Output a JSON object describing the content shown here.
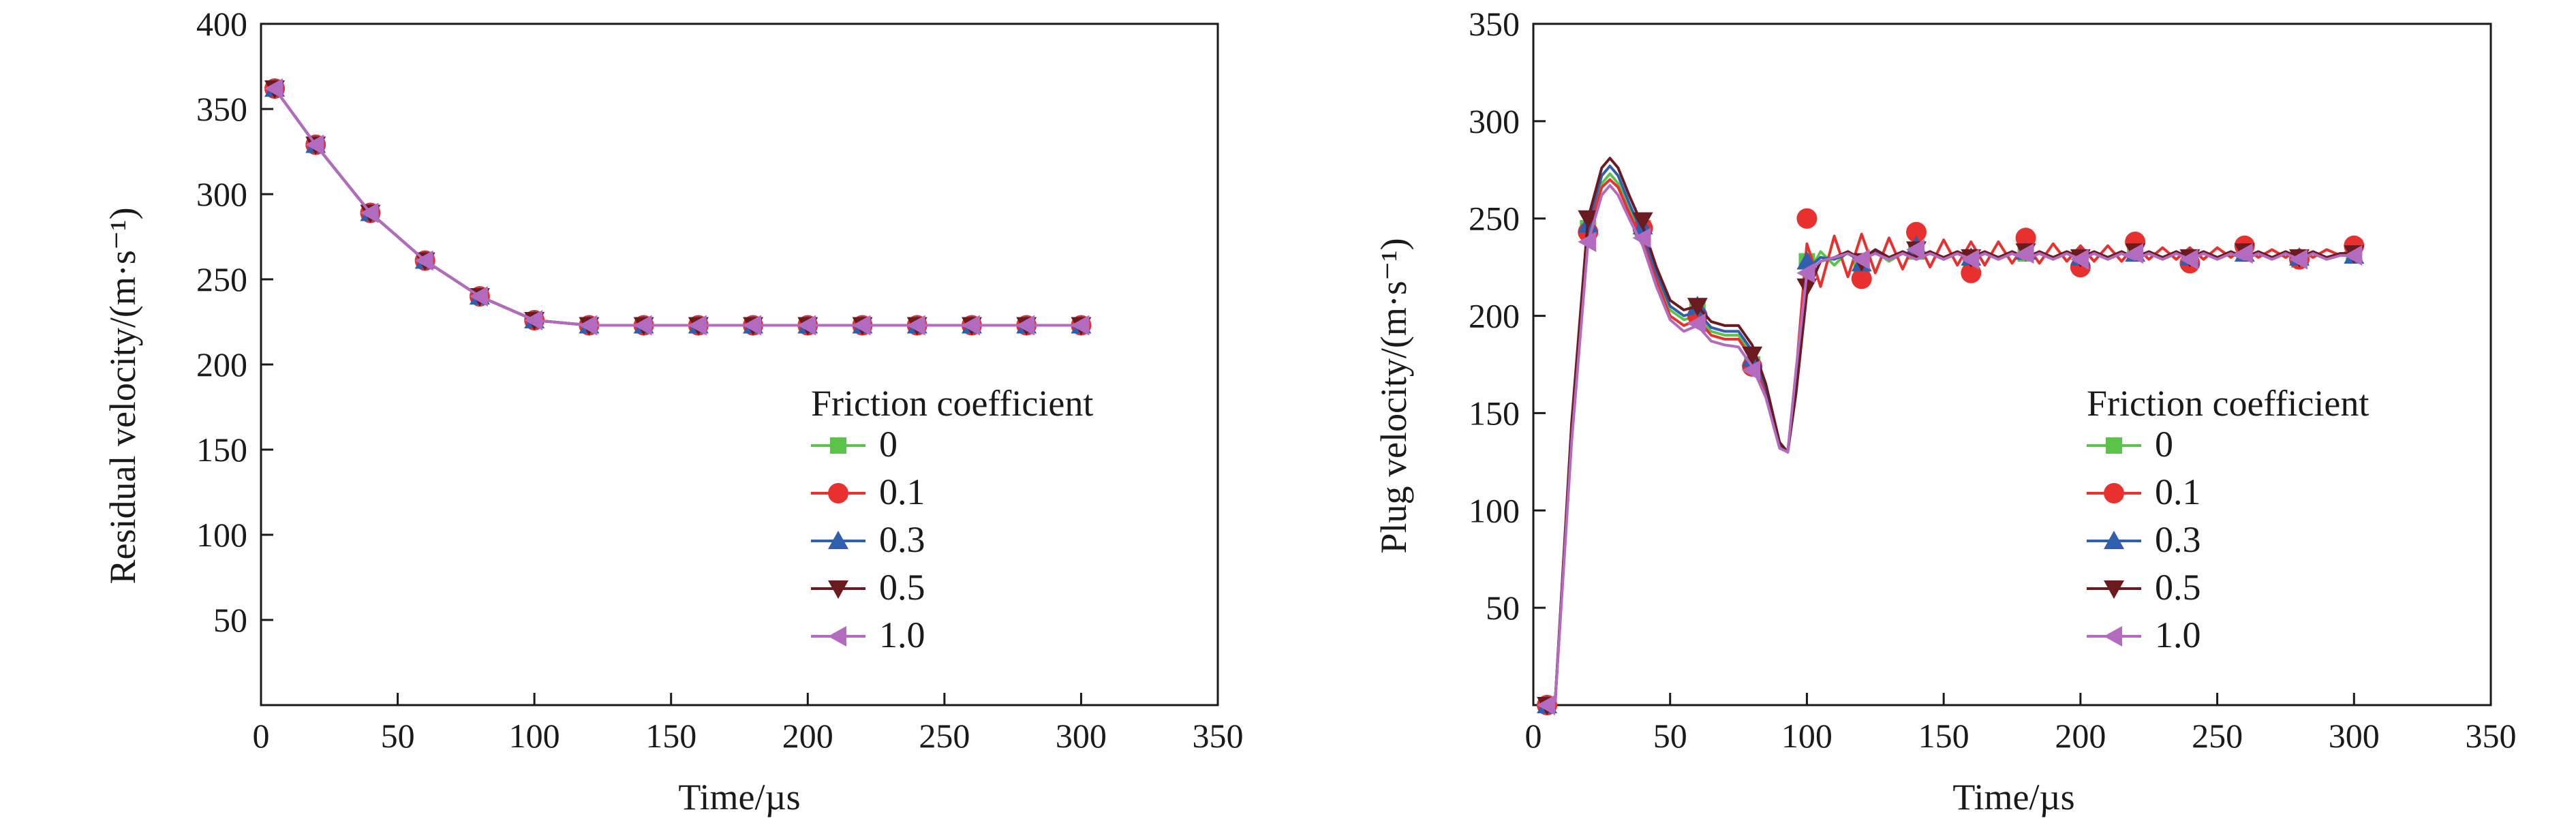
{
  "chart_data": [
    {
      "type": "line",
      "xlabel": "Time/µs",
      "ylabel": "Residual velocity/(m·s⁻¹)",
      "xlim": [
        0,
        350
      ],
      "ylim": [
        0,
        400
      ],
      "xticks": [
        0,
        50,
        100,
        150,
        200,
        250,
        300,
        350
      ],
      "yticks": [
        50,
        100,
        150,
        200,
        250,
        300,
        350,
        400
      ],
      "xtick_labels": [
        "0",
        "50",
        "100",
        "150",
        "200",
        "250",
        "300",
        "350"
      ],
      "ytick_labels": [
        "50",
        "100",
        "150",
        "200",
        "250",
        "300",
        "350",
        "400"
      ],
      "grid": false,
      "legend_title": "Friction coefficient",
      "legend_position": "lower-right",
      "series": [
        {
          "name": "0",
          "color": "#5cc34a",
          "marker": "square",
          "x": [
            5,
            20,
            40,
            60,
            80,
            100,
            120,
            140,
            160,
            180,
            200,
            220,
            240,
            260,
            280,
            300
          ],
          "y": [
            362,
            329,
            289,
            261,
            240,
            226,
            223,
            223,
            223,
            223,
            223,
            223,
            223,
            223,
            223,
            223
          ]
        },
        {
          "name": "0.1",
          "color": "#e8312f",
          "marker": "circle",
          "x": [
            5,
            20,
            40,
            60,
            80,
            100,
            120,
            140,
            160,
            180,
            200,
            220,
            240,
            260,
            280,
            300
          ],
          "y": [
            362,
            329,
            289,
            261,
            240,
            226,
            223,
            223,
            223,
            223,
            223,
            223,
            223,
            223,
            223,
            223
          ]
        },
        {
          "name": "0.3",
          "color": "#2f5fae",
          "marker": "triangle-up",
          "x": [
            5,
            20,
            40,
            60,
            80,
            100,
            120,
            140,
            160,
            180,
            200,
            220,
            240,
            260,
            280,
            300
          ],
          "y": [
            362,
            329,
            289,
            261,
            240,
            226,
            223,
            223,
            223,
            223,
            223,
            223,
            223,
            223,
            223,
            223
          ]
        },
        {
          "name": "0.5",
          "color": "#6b1a1f",
          "marker": "triangle-down",
          "x": [
            5,
            20,
            40,
            60,
            80,
            100,
            120,
            140,
            160,
            180,
            200,
            220,
            240,
            260,
            280,
            300
          ],
          "y": [
            362,
            329,
            289,
            261,
            240,
            226,
            223,
            223,
            223,
            223,
            223,
            223,
            223,
            223,
            223,
            223
          ]
        },
        {
          "name": "1.0",
          "color": "#b36bbf",
          "marker": "triangle-left",
          "x": [
            5,
            20,
            40,
            60,
            80,
            100,
            120,
            140,
            160,
            180,
            200,
            220,
            240,
            260,
            280,
            300
          ],
          "y": [
            362,
            329,
            289,
            261,
            240,
            226,
            223,
            223,
            223,
            223,
            223,
            223,
            223,
            223,
            223,
            223
          ]
        }
      ]
    },
    {
      "type": "line",
      "xlabel": "Time/µs",
      "ylabel": "Plug velocity/(m·s⁻¹)",
      "xlim": [
        0,
        350
      ],
      "ylim": [
        0,
        350
      ],
      "xticks": [
        0,
        50,
        100,
        150,
        200,
        250,
        300,
        350
      ],
      "yticks": [
        50,
        100,
        150,
        200,
        250,
        300,
        350
      ],
      "xtick_labels": [
        "0",
        "50",
        "100",
        "150",
        "200",
        "250",
        "300",
        "350"
      ],
      "ytick_labels": [
        "50",
        "100",
        "150",
        "200",
        "250",
        "300",
        "350"
      ],
      "grid": false,
      "legend_title": "Friction coefficient",
      "legend_position": "lower-right",
      "series": [
        {
          "name": "0",
          "color": "#5cc34a",
          "marker": "square",
          "x": [
            5,
            8,
            14,
            20,
            25,
            28,
            31,
            35,
            40,
            45,
            50,
            55,
            60,
            65,
            70,
            75,
            80,
            85,
            90,
            93,
            96,
            100,
            105,
            110,
            115,
            120,
            125,
            130,
            135,
            140,
            145,
            150,
            155,
            160,
            165,
            170,
            175,
            180,
            185,
            190,
            195,
            200,
            205,
            210,
            215,
            220,
            225,
            230,
            235,
            240,
            245,
            250,
            255,
            260,
            265,
            270,
            275,
            280,
            285,
            290,
            295,
            300
          ],
          "y": [
            0,
            2,
            140,
            245,
            268,
            273,
            268,
            255,
            240,
            220,
            203,
            198,
            200,
            192,
            190,
            190,
            180,
            162,
            135,
            130,
            165,
            220,
            233,
            226,
            233,
            227,
            233,
            228,
            232,
            229,
            232,
            229,
            232,
            229,
            232,
            229,
            232,
            229,
            232,
            229,
            232,
            229,
            232,
            229,
            232,
            229,
            232,
            229,
            232,
            229,
            232,
            229,
            232,
            229,
            232,
            229,
            232,
            229,
            232,
            229,
            232,
            231
          ],
          "mx": [
            5,
            20,
            40,
            60,
            80,
            100,
            120,
            140,
            160,
            180,
            200,
            220,
            240,
            260,
            280,
            300
          ],
          "my": [
            0,
            245,
            245,
            203,
            175,
            228,
            226,
            233,
            228,
            232,
            229,
            232,
            229,
            232,
            229,
            232
          ]
        },
        {
          "name": "0.1",
          "color": "#e8312f",
          "marker": "circle",
          "x": [
            5,
            8,
            14,
            20,
            25,
            28,
            31,
            35,
            40,
            45,
            50,
            55,
            60,
            65,
            70,
            75,
            80,
            85,
            90,
            93,
            96,
            100,
            105,
            110,
            115,
            120,
            125,
            130,
            135,
            140,
            145,
            150,
            155,
            160,
            165,
            170,
            175,
            180,
            185,
            190,
            195,
            200,
            205,
            210,
            215,
            220,
            225,
            230,
            235,
            240,
            245,
            250,
            255,
            260,
            265,
            270,
            275,
            280,
            285,
            290,
            295,
            300
          ],
          "y": [
            0,
            2,
            138,
            243,
            266,
            270,
            266,
            253,
            238,
            218,
            200,
            195,
            198,
            190,
            188,
            188,
            178,
            160,
            133,
            130,
            170,
            237,
            215,
            241,
            220,
            242,
            222,
            240,
            224,
            240,
            225,
            239,
            226,
            238,
            226,
            238,
            227,
            237,
            227,
            237,
            228,
            236,
            228,
            236,
            228,
            236,
            229,
            235,
            229,
            235,
            229,
            235,
            230,
            235,
            230,
            234,
            230,
            234,
            230,
            234,
            231,
            235
          ],
          "mx": [
            5,
            20,
            40,
            60,
            80,
            100,
            120,
            140,
            160,
            180,
            200,
            220,
            240,
            260,
            280,
            300
          ],
          "my": [
            0,
            243,
            245,
            200,
            174,
            250,
            219,
            243,
            222,
            240,
            225,
            238,
            227,
            236,
            229,
            236
          ]
        },
        {
          "name": "0.3",
          "color": "#2f5fae",
          "marker": "triangle-up",
          "x": [
            5,
            8,
            14,
            20,
            25,
            28,
            31,
            35,
            40,
            45,
            50,
            55,
            60,
            65,
            70,
            75,
            80,
            85,
            90,
            93,
            96,
            100,
            105,
            110,
            115,
            120,
            125,
            130,
            135,
            140,
            145,
            150,
            155,
            160,
            165,
            170,
            175,
            180,
            185,
            190,
            195,
            200,
            205,
            210,
            215,
            220,
            225,
            230,
            235,
            240,
            245,
            250,
            255,
            260,
            265,
            270,
            275,
            280,
            285,
            290,
            295,
            300
          ],
          "y": [
            0,
            2,
            142,
            247,
            272,
            277,
            272,
            258,
            242,
            222,
            205,
            200,
            202,
            194,
            192,
            192,
            182,
            163,
            134,
            130,
            163,
            224,
            230,
            229,
            232,
            228,
            233,
            229,
            233,
            229,
            233,
            229,
            232,
            229,
            232,
            230,
            232,
            230,
            232,
            230,
            232,
            230,
            232,
            230,
            232,
            230,
            232,
            230,
            232,
            230,
            232,
            230,
            232,
            230,
            232,
            230,
            232,
            230,
            232,
            230,
            232,
            232
          ],
          "mx": [
            5,
            20,
            40,
            60,
            80,
            100,
            120,
            140,
            160,
            180,
            200,
            220,
            240,
            260,
            280,
            300
          ],
          "my": [
            0,
            247,
            246,
            205,
            178,
            228,
            227,
            236,
            230,
            233,
            230,
            232,
            230,
            232,
            230,
            231
          ]
        },
        {
          "name": "0.5",
          "color": "#6b1a1f",
          "marker": "triangle-down",
          "x": [
            5,
            8,
            14,
            20,
            25,
            28,
            31,
            35,
            40,
            45,
            50,
            55,
            60,
            65,
            70,
            75,
            80,
            85,
            90,
            93,
            96,
            100,
            105,
            110,
            115,
            120,
            125,
            130,
            135,
            140,
            145,
            150,
            155,
            160,
            165,
            170,
            175,
            180,
            185,
            190,
            195,
            200,
            205,
            210,
            215,
            220,
            225,
            230,
            235,
            240,
            245,
            250,
            255,
            260,
            265,
            270,
            275,
            280,
            285,
            290,
            295,
            300
          ],
          "y": [
            0,
            2,
            145,
            250,
            276,
            281,
            276,
            262,
            246,
            225,
            208,
            203,
            205,
            197,
            195,
            195,
            185,
            165,
            135,
            130,
            160,
            212,
            228,
            230,
            233,
            229,
            234,
            230,
            233,
            230,
            233,
            230,
            233,
            230,
            233,
            230,
            233,
            230,
            233,
            230,
            233,
            230,
            233,
            230,
            233,
            230,
            233,
            230,
            233,
            230,
            233,
            230,
            233,
            230,
            233,
            230,
            233,
            230,
            233,
            230,
            232,
            232
          ],
          "mx": [
            5,
            20,
            40,
            60,
            80,
            100,
            120,
            140,
            160,
            180,
            200,
            220,
            240,
            260,
            280,
            300
          ],
          "my": [
            0,
            250,
            249,
            205,
            180,
            215,
            228,
            234,
            230,
            233,
            230,
            233,
            230,
            233,
            230,
            232
          ]
        },
        {
          "name": "1.0",
          "color": "#b36bbf",
          "marker": "triangle-left",
          "x": [
            5,
            8,
            14,
            20,
            25,
            28,
            31,
            35,
            40,
            45,
            50,
            55,
            60,
            65,
            70,
            75,
            80,
            85,
            90,
            93,
            96,
            100,
            105,
            110,
            115,
            120,
            125,
            130,
            135,
            140,
            145,
            150,
            155,
            160,
            165,
            170,
            175,
            180,
            185,
            190,
            195,
            200,
            205,
            210,
            215,
            220,
            225,
            230,
            235,
            240,
            245,
            250,
            255,
            260,
            265,
            270,
            275,
            280,
            285,
            290,
            295,
            300
          ],
          "y": [
            0,
            2,
            135,
            238,
            262,
            267,
            262,
            250,
            236,
            215,
            198,
            192,
            195,
            187,
            185,
            184,
            174,
            158,
            132,
            130,
            172,
            222,
            228,
            230,
            232,
            229,
            232,
            229,
            232,
            229,
            232,
            229,
            232,
            229,
            232,
            229,
            232,
            229,
            232,
            229,
            232,
            229,
            232,
            229,
            232,
            229,
            232,
            229,
            232,
            229,
            232,
            229,
            232,
            229,
            232,
            229,
            232,
            229,
            232,
            229,
            231,
            231
          ],
          "mx": [
            5,
            20,
            40,
            60,
            80,
            100,
            120,
            140,
            160,
            180,
            200,
            220,
            240,
            260,
            280,
            300
          ],
          "my": [
            0,
            238,
            240,
            196,
            172,
            222,
            229,
            234,
            229,
            232,
            229,
            232,
            229,
            232,
            229,
            231
          ]
        }
      ]
    }
  ]
}
